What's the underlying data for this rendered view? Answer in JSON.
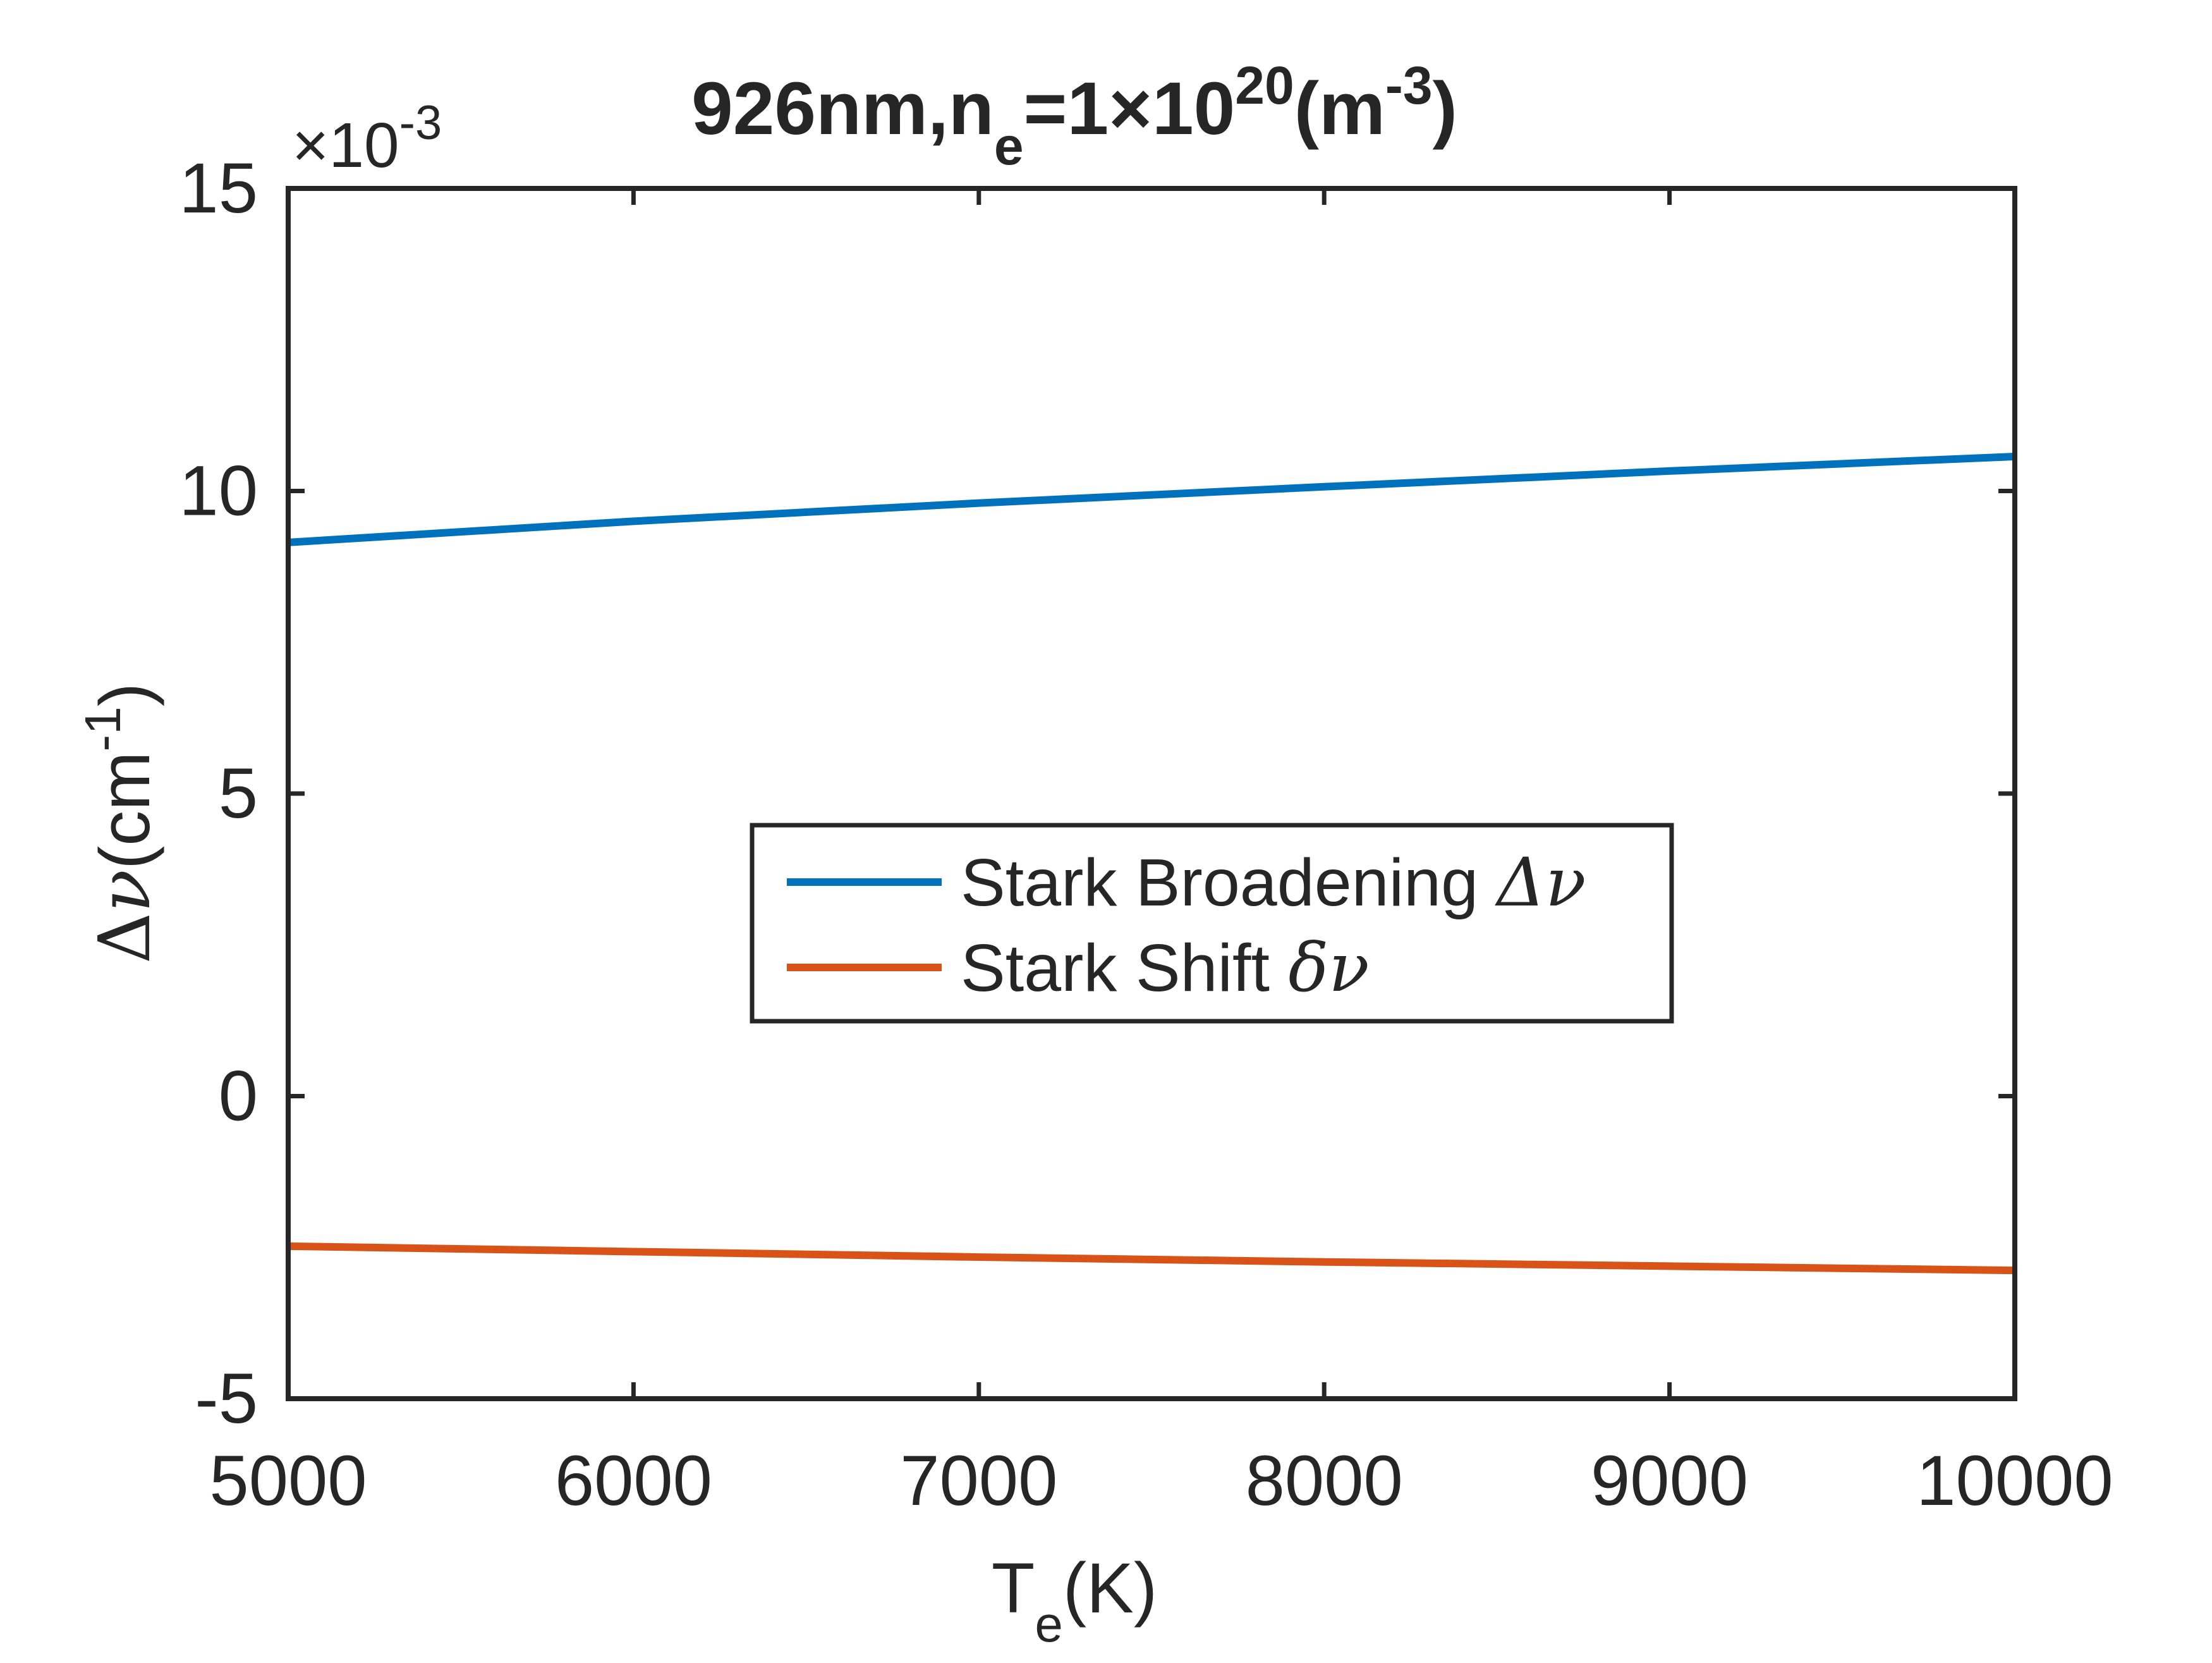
{
  "chart_data": {
    "type": "line",
    "title": {
      "prefix": "926nm,n",
      "sub": "e",
      "mid": "=1×10",
      "sup": "20",
      "open": "(m",
      "sup2": "-3",
      "close": ")"
    },
    "xlabel": {
      "main": "T",
      "sub": "e",
      "rest": "(K)"
    },
    "ylabel": {
      "main": "Δ",
      "sym": "ν",
      "rest": "(cm",
      "sup": "-1",
      "close": ")"
    },
    "y_exponent": {
      "base": "×10",
      "sup": "-3"
    },
    "xlim": [
      5000,
      10000
    ],
    "ylim": [
      -5,
      15
    ],
    "xticks": [
      5000,
      6000,
      7000,
      8000,
      9000,
      10000
    ],
    "xtick_labels": [
      "5000",
      "6000",
      "7000",
      "8000",
      "9000",
      "10000"
    ],
    "yticks": [
      -5,
      0,
      5,
      10,
      15
    ],
    "ytick_labels": [
      "-5",
      "0",
      "5",
      "10",
      "15"
    ],
    "grid": false,
    "legend_position": "center",
    "series": [
      {
        "name": "Stark Broadening Δν",
        "name_text": "Stark Broadening ",
        "name_symbol": "Δν",
        "color": "#0072BD",
        "x": [
          5000,
          6000,
          7000,
          8000,
          9000,
          10000
        ],
        "y": [
          9.15,
          9.5,
          9.8,
          10.07,
          10.33,
          10.57
        ]
      },
      {
        "name": "Stark Shift δν",
        "name_text": "Stark Shift ",
        "name_symbol": "δν",
        "color": "#D95319",
        "x": [
          5000,
          6000,
          7000,
          8000,
          9000,
          10000
        ],
        "y": [
          -2.48,
          -2.57,
          -2.66,
          -2.74,
          -2.81,
          -2.88
        ]
      }
    ]
  }
}
